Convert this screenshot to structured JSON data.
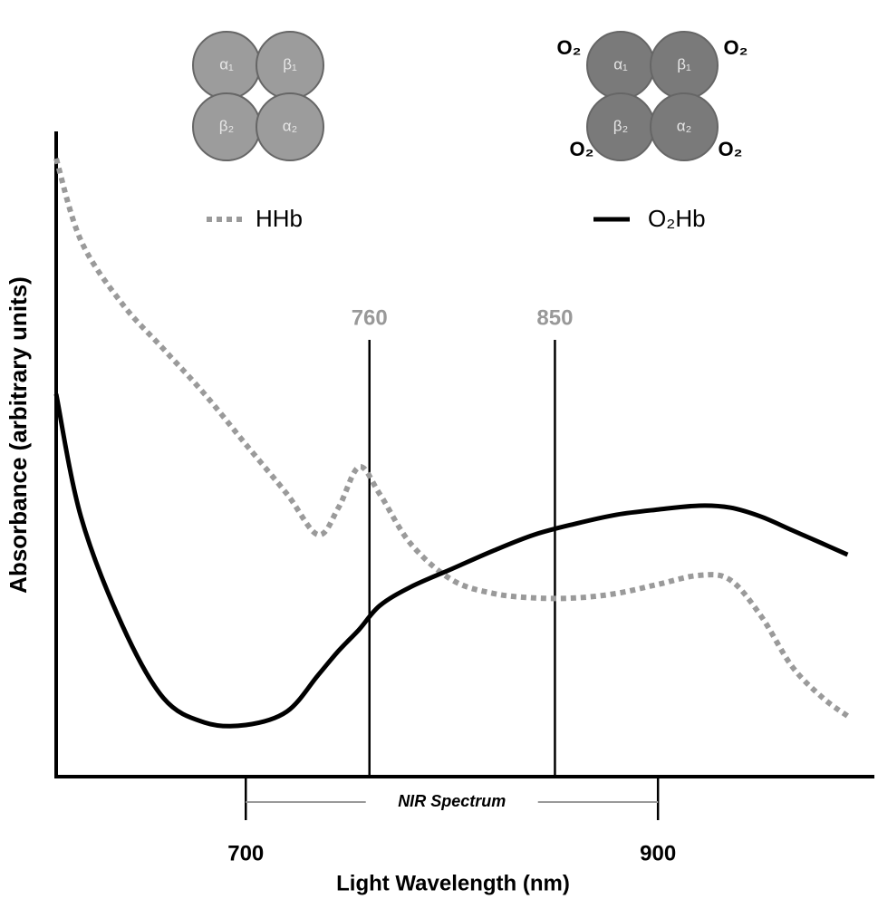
{
  "chart_data": {
    "type": "line",
    "xlabel": "Light Wavelength (nm)",
    "ylabel": "Absorbance (arbitrary units)",
    "x": [
      608,
      620,
      640,
      660,
      680,
      700,
      720,
      735,
      745,
      755,
      765,
      780,
      800,
      820,
      840,
      860,
      880,
      900,
      920,
      935,
      950,
      965,
      980,
      992
    ],
    "series": [
      {
        "name": "HHb",
        "color": "#9a9a9a",
        "style": "dotted",
        "values": [
          95.8,
          83.1,
          73.3,
          66.3,
          59.3,
          51.5,
          43.8,
          37.5,
          41.7,
          48,
          43.8,
          36.1,
          30.5,
          28.4,
          27.7,
          27.7,
          28.4,
          29.8,
          31.2,
          30.5,
          24.9,
          17.1,
          12.2,
          9.4
        ]
      },
      {
        "name": "O₂Hb",
        "color": "#000000",
        "style": "solid",
        "values": [
          59.3,
          40.3,
          23.5,
          12.2,
          8.4,
          8.0,
          10.1,
          15.7,
          19.5,
          22.8,
          26.5,
          29.4,
          32.2,
          35.0,
          37.5,
          39.2,
          40.6,
          41.4,
          42.0,
          41.7,
          40.3,
          38.2,
          36.1,
          34.4
        ]
      }
    ],
    "xlim": [
      608,
      1005
    ],
    "ylim": [
      0,
      100
    ],
    "xticks": [
      700,
      900
    ],
    "vlines": [
      760,
      850
    ],
    "span": {
      "label": "NIR Spectrum",
      "from": 700,
      "to": 900
    },
    "illustrations": {
      "deoxy": {
        "subunits": [
          "α₁",
          "β₁",
          "β₂",
          "α₂"
        ],
        "color": "#9c9c9c"
      },
      "oxy": {
        "subunits": [
          "α₁",
          "β₁",
          "β₂",
          "α₂"
        ],
        "ligands": [
          "O₂",
          "O₂",
          "O₂",
          "O₂"
        ],
        "color": "#7a7a7a"
      }
    }
  }
}
